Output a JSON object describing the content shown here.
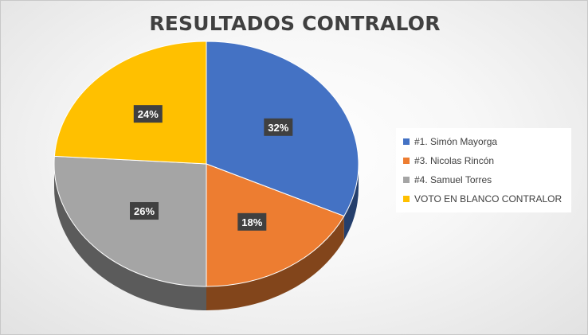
{
  "chart_data": {
    "type": "pie",
    "title": "RESULTADOS CONTRALOR",
    "categories": [
      "#1. Simón Mayorga",
      "#3. Nicolas Rincón",
      "#4. Samuel Torres",
      "VOTO EN BLANCO CONTRALOR"
    ],
    "values": [
      32,
      18,
      26,
      24
    ],
    "labels": [
      "32%",
      "18%",
      "26%",
      "24%"
    ],
    "colors": [
      "#4472C4",
      "#ED7D31",
      "#A5A5A5",
      "#FFC000"
    ],
    "legend": "right",
    "style": "3d"
  }
}
